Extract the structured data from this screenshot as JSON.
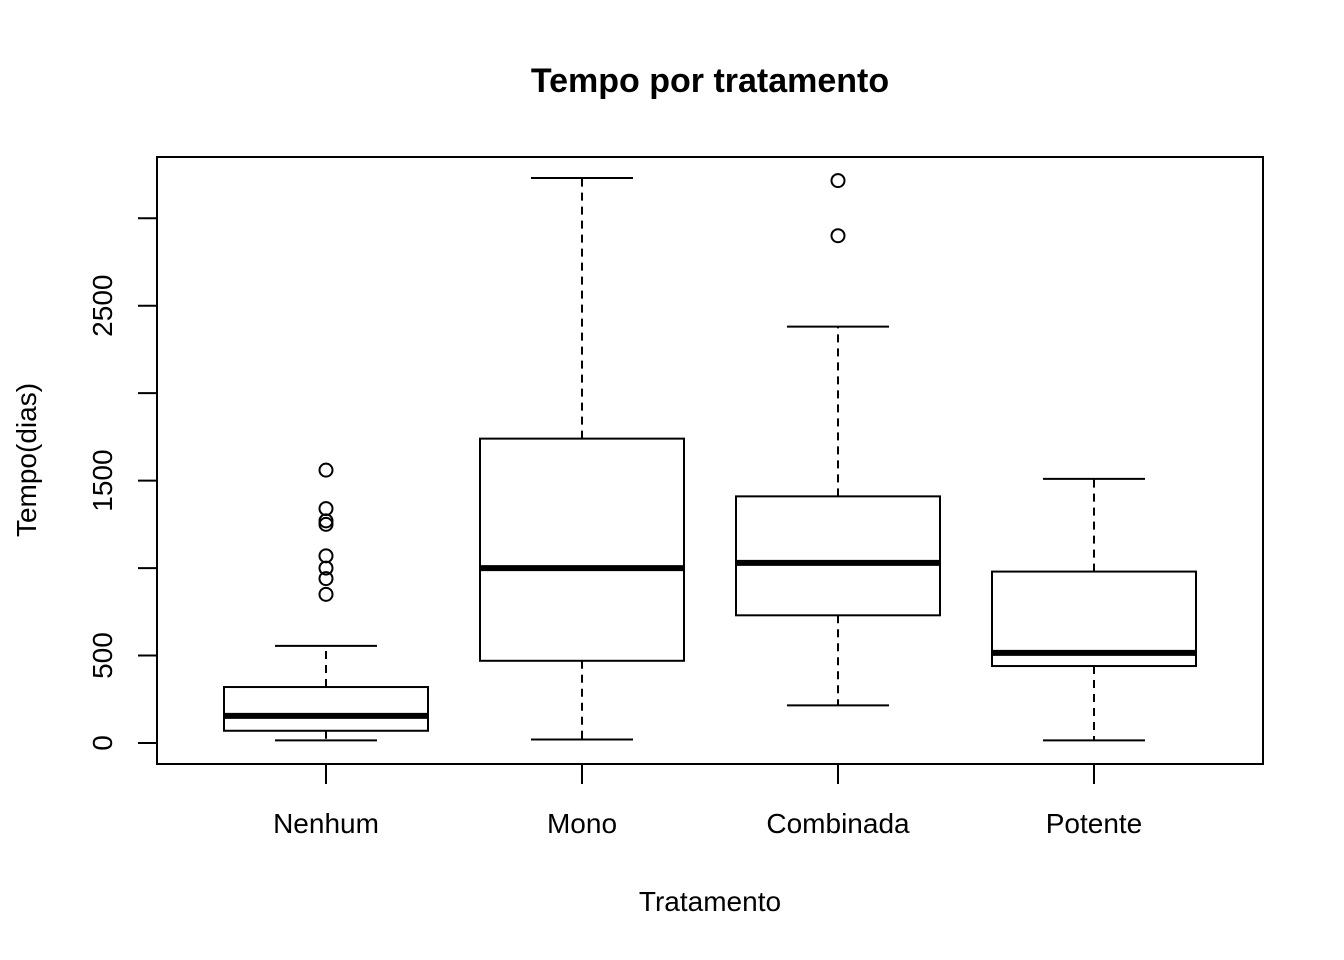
{
  "chart_data": {
    "type": "boxplot",
    "title": "Tempo por tratamento",
    "xlabel": "Tratamento",
    "ylabel": "Tempo(dias)",
    "ylim": [
      -120,
      3350
    ],
    "yticks": [
      0,
      500,
      1500,
      2500
    ],
    "yticks_unlabeled": [
      1000,
      2000,
      3000
    ],
    "categories": [
      "Nenhum",
      "Mono",
      "Combinada",
      "Potente"
    ],
    "boxes": [
      {
        "category": "Nenhum",
        "whisker_low": 15,
        "q1": 70,
        "median": 155,
        "q3": 320,
        "whisker_high": 555,
        "outliers": [
          850,
          940,
          1000,
          1070,
          1250,
          1270,
          1340,
          1560
        ]
      },
      {
        "category": "Mono",
        "whisker_low": 20,
        "q1": 470,
        "median": 1000,
        "q3": 1740,
        "whisker_high": 3230,
        "outliers": []
      },
      {
        "category": "Combinada",
        "whisker_low": 215,
        "q1": 730,
        "median": 1030,
        "q3": 1410,
        "whisker_high": 2380,
        "outliers": [
          2900,
          3215
        ]
      },
      {
        "category": "Potente",
        "whisker_low": 15,
        "q1": 440,
        "median": 515,
        "q3": 980,
        "whisker_high": 1510,
        "outliers": []
      }
    ],
    "grid": false,
    "legend": "none"
  }
}
